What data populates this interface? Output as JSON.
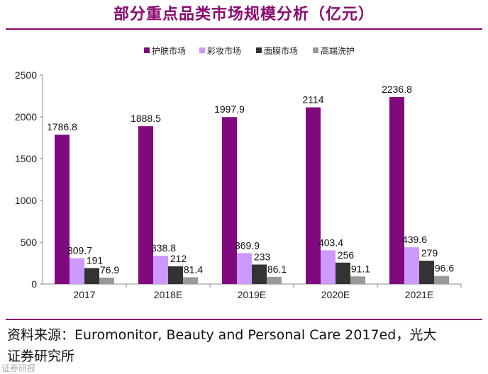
{
  "title": "部分重点品类市场规模分析（亿元）",
  "chart_data": {
    "type": "bar",
    "categories": [
      "2017",
      "2018E",
      "2019E",
      "2020E",
      "2021E"
    ],
    "series": [
      {
        "name": "护肤市场",
        "color": "#800a7d",
        "values": [
          1786.8,
          1888.5,
          1997.9,
          2114,
          2236.8
        ],
        "labels": [
          "1786.8",
          "1888.5",
          "1997.9",
          "2114",
          "2236.8"
        ]
      },
      {
        "name": "彩妆市场",
        "color": "#cc99ff",
        "values": [
          309.7,
          338.8,
          369.9,
          403.4,
          439.6
        ],
        "labels": [
          "309.7",
          "338.8",
          "369.9",
          "403.4",
          "439.6"
        ]
      },
      {
        "name": "面膜市场",
        "color": "#333333",
        "values": [
          191,
          212,
          233,
          256,
          279
        ],
        "labels": [
          "191",
          "212",
          "233",
          "256",
          "279"
        ]
      },
      {
        "name": "高端洗护",
        "color": "#999999",
        "values": [
          76.9,
          81.4,
          86.1,
          91.1,
          96.6
        ],
        "labels": [
          "76.9",
          "81.4",
          "86.1",
          "91.1",
          "96.6"
        ]
      }
    ],
    "ylim": [
      0,
      2500
    ],
    "yticks": [
      "0",
      "500",
      "1000",
      "1500",
      "2000",
      "2500"
    ],
    "legend_position": "top",
    "grid": false
  },
  "source": {
    "line1": "资料来源：Euromonitor, Beauty and Personal Care 2017ed，光大",
    "line2": "证券研究所"
  },
  "watermark": "证券研报"
}
